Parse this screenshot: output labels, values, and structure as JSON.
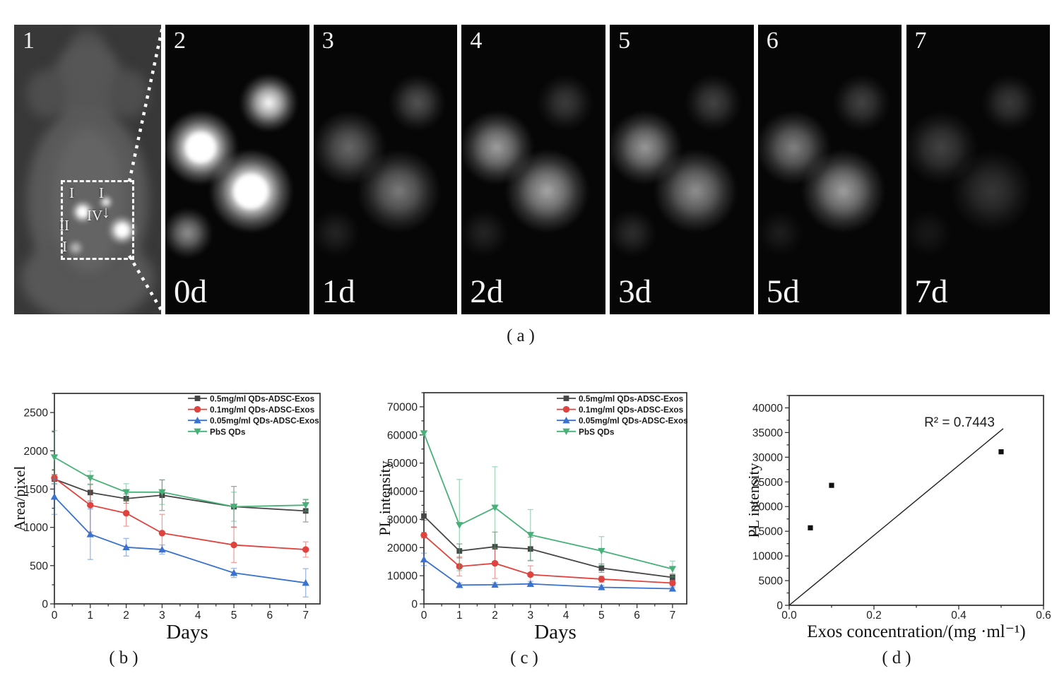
{
  "panel_a": {
    "caption": "(a)",
    "mouse_panel": {
      "number": "1",
      "roi_labels": [
        "I",
        "I",
        "II",
        "IV",
        "I"
      ],
      "arrow": "↓"
    },
    "time_panels": [
      {
        "number": "2",
        "day": "0d",
        "spot_intensities": [
          1.0,
          0.8,
          1.0,
          0.45
        ]
      },
      {
        "number": "3",
        "day": "1d",
        "spot_intensities": [
          0.32,
          0.25,
          0.38,
          0.1
        ]
      },
      {
        "number": "4",
        "day": "2d",
        "spot_intensities": [
          0.5,
          0.18,
          0.52,
          0.1
        ]
      },
      {
        "number": "5",
        "day": "3d",
        "spot_intensities": [
          0.48,
          0.2,
          0.45,
          0.13
        ]
      },
      {
        "number": "6",
        "day": "5d",
        "spot_intensities": [
          0.4,
          0.2,
          0.5,
          0.08
        ]
      },
      {
        "number": "7",
        "day": "7d",
        "spot_intensities": [
          0.2,
          0.17,
          0.16,
          0.06
        ]
      }
    ]
  },
  "captions": {
    "b": "(b)",
    "c": "(c)",
    "d": "(d)"
  },
  "colors": {
    "series_black": "#464646",
    "series_red": "#e0433e",
    "series_blue": "#3a72cf",
    "series_green": "#48b179"
  },
  "chart_data": [
    {
      "id": "b",
      "type": "line",
      "xlabel": "Days",
      "ylabel": "Area/pixel",
      "xlim": [
        0,
        7.4
      ],
      "ylim": [
        0,
        2750
      ],
      "xticks": [
        0,
        1,
        2,
        3,
        4,
        5,
        6,
        7
      ],
      "yticks": [
        0,
        500,
        1000,
        1500,
        2000,
        2500
      ],
      "xminor": 0.5,
      "yminor": 250,
      "x": [
        0,
        1,
        2,
        3,
        5,
        7
      ],
      "legend_position": "top-right",
      "series": [
        {
          "name": "0.5mg/ml QDs-ADSC-Exos",
          "color": "#464646",
          "marker": "square",
          "values": [
            1630,
            1455,
            1375,
            1420,
            1270,
            1215
          ],
          "errors": [
            60,
            110,
            60,
            200,
            265,
            145
          ]
        },
        {
          "name": "0.1mg/ml QDs-ADSC-Exos",
          "color": "#e0433e",
          "marker": "circle",
          "values": [
            1645,
            1290,
            1185,
            925,
            770,
            710
          ],
          "errors": [
            40,
            350,
            170,
            245,
            230,
            100
          ]
        },
        {
          "name": "0.05mg/ml QDs-ADSC-Exos",
          "color": "#3a72cf",
          "marker": "triangle-up",
          "values": [
            1400,
            910,
            740,
            710,
            405,
            275
          ],
          "errors": [
            230,
            330,
            115,
            60,
            60,
            185
          ]
        },
        {
          "name": "PbS QDs",
          "color": "#48b179",
          "marker": "triangle-down",
          "values": [
            1915,
            1645,
            1460,
            1460,
            1270,
            1290
          ],
          "errors": [
            350,
            90,
            110,
            160,
            190,
            80
          ]
        }
      ]
    },
    {
      "id": "c",
      "type": "line",
      "xlabel": "Days",
      "ylabel": "PL intensity",
      "xlim": [
        0,
        7.4
      ],
      "ylim": [
        0,
        75000
      ],
      "xticks": [
        0,
        1,
        2,
        3,
        4,
        5,
        6,
        7
      ],
      "yticks": [
        0,
        10000,
        20000,
        30000,
        40000,
        50000,
        60000,
        70000
      ],
      "xminor": 0.5,
      "yminor": 5000,
      "x": [
        0,
        1,
        2,
        3,
        5,
        7
      ],
      "legend_position": "top-right",
      "series": [
        {
          "name": "0.5mg/ml QDs-ADSC-Exos",
          "color": "#464646",
          "marker": "square",
          "values": [
            31200,
            18800,
            20300,
            19500,
            12700,
            9400
          ],
          "errors": [
            1500,
            2500,
            5200,
            4200,
            1500,
            1200
          ]
        },
        {
          "name": "0.1mg/ml QDs-ADSC-Exos",
          "color": "#e0433e",
          "marker": "circle",
          "values": [
            24400,
            13300,
            14400,
            10400,
            8800,
            7400
          ],
          "errors": [
            1000,
            3400,
            5400,
            3100,
            1100,
            900
          ]
        },
        {
          "name": "0.05mg/ml QDs-ADSC-Exos",
          "color": "#3a72cf",
          "marker": "triangle-up",
          "values": [
            15800,
            6700,
            6800,
            7100,
            5900,
            5400
          ],
          "errors": [
            2200,
            700,
            700,
            900,
            700,
            600
          ]
        },
        {
          "name": "PbS QDs",
          "color": "#48b179",
          "marker": "triangle-down",
          "values": [
            60600,
            28000,
            34200,
            24500,
            18800,
            12400
          ],
          "errors": [
            600,
            16200,
            14500,
            9000,
            5100,
            2800
          ]
        }
      ]
    },
    {
      "id": "d",
      "type": "scatter",
      "xlabel": "Exos concentration/(mg ·ml⁻¹)",
      "ylabel": "PL intensity",
      "xlim": [
        0,
        0.6
      ],
      "ylim": [
        0,
        42500
      ],
      "xticks": [
        0,
        0.2,
        0.4,
        0.6
      ],
      "xtick_labels": [
        "0.0",
        "0.2",
        "0.4",
        "0.6"
      ],
      "yticks": [
        0,
        5000,
        10000,
        15000,
        20000,
        25000,
        30000,
        35000,
        40000
      ],
      "xminor": 0.1,
      "yminor": 2500,
      "point_color": "#111111",
      "points": [
        {
          "x": 0.05,
          "y": 15700
        },
        {
          "x": 0.1,
          "y": 24300
        },
        {
          "x": 0.5,
          "y": 31100
        }
      ],
      "fit_line": {
        "x1": 0,
        "y1": 0,
        "x2": 0.505,
        "y2": 35800
      },
      "annotation": "R² = 0.7443"
    }
  ]
}
